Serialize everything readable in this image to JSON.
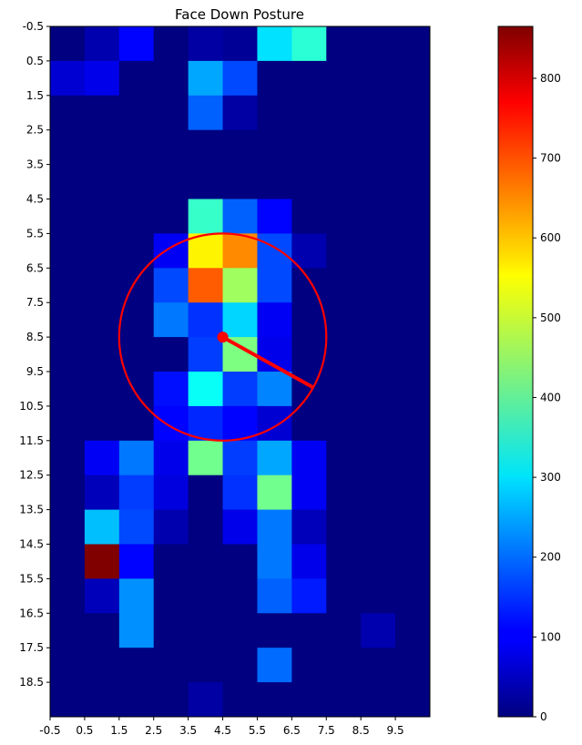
{
  "chart_data": [
    {
      "type": "heatmap",
      "title": "Face Down Posture",
      "xlabel": "",
      "ylabel": "",
      "x_tick_labels": [
        "-0.5",
        "0.5",
        "1.5",
        "2.5",
        "3.5",
        "4.5",
        "5.5",
        "6.5",
        "7.5",
        "8.5",
        "9.5"
      ],
      "y_tick_labels": [
        "-0.5",
        "0.5",
        "1.5",
        "2.5",
        "3.5",
        "4.5",
        "5.5",
        "6.5",
        "7.5",
        "8.5",
        "9.5",
        "10.5",
        "11.5",
        "12.5",
        "13.5",
        "14.5",
        "15.5",
        "16.5",
        "17.5",
        "18.5"
      ],
      "xlim": [
        -0.5,
        10.5
      ],
      "ylim": [
        19.5,
        -0.5
      ],
      "colormap": "jet",
      "vmin": 0,
      "vmax": 865,
      "colorbar_ticks": [
        0,
        100,
        200,
        300,
        400,
        500,
        600,
        700,
        800
      ],
      "values": [
        [
          0,
          40,
          110,
          0,
          30,
          20,
          300,
          360,
          0,
          0,
          0
        ],
        [
          70,
          90,
          0,
          0,
          250,
          170,
          0,
          0,
          0,
          0,
          0
        ],
        [
          0,
          0,
          0,
          0,
          190,
          30,
          0,
          0,
          0,
          0,
          0
        ],
        [
          0,
          0,
          0,
          0,
          0,
          0,
          0,
          0,
          0,
          0,
          0
        ],
        [
          0,
          0,
          0,
          0,
          0,
          0,
          0,
          0,
          0,
          0,
          0
        ],
        [
          0,
          0,
          0,
          0,
          370,
          190,
          110,
          0,
          0,
          0,
          0
        ],
        [
          0,
          0,
          0,
          100,
          550,
          640,
          170,
          40,
          0,
          0,
          0
        ],
        [
          0,
          0,
          0,
          170,
          680,
          460,
          170,
          0,
          0,
          0,
          0
        ],
        [
          0,
          0,
          0,
          210,
          150,
          290,
          100,
          0,
          0,
          0,
          0
        ],
        [
          0,
          0,
          0,
          0,
          160,
          430,
          90,
          0,
          0,
          0,
          0
        ],
        [
          0,
          0,
          0,
          120,
          330,
          160,
          220,
          0,
          0,
          0,
          0
        ],
        [
          0,
          0,
          0,
          110,
          140,
          110,
          70,
          0,
          0,
          0,
          0
        ],
        [
          0,
          100,
          210,
          90,
          420,
          160,
          250,
          100,
          0,
          0,
          0
        ],
        [
          0,
          50,
          160,
          80,
          0,
          150,
          420,
          100,
          0,
          0,
          0
        ],
        [
          0,
          270,
          170,
          40,
          0,
          90,
          210,
          50,
          0,
          0,
          0
        ],
        [
          0,
          865,
          110,
          0,
          0,
          0,
          210,
          90,
          0,
          0,
          0
        ],
        [
          0,
          50,
          230,
          0,
          0,
          0,
          190,
          130,
          0,
          0,
          0
        ],
        [
          0,
          0,
          230,
          0,
          0,
          0,
          0,
          0,
          0,
          40,
          0
        ],
        [
          0,
          0,
          0,
          0,
          0,
          0,
          200,
          0,
          0,
          0,
          0
        ],
        [
          0,
          0,
          0,
          0,
          30,
          0,
          0,
          0,
          0,
          0,
          0
        ]
      ],
      "overlay": {
        "circle": {
          "cx": 4.5,
          "cy": 8.5,
          "r": 3.0,
          "color": "#ff0000"
        },
        "center_point": {
          "x": 4.5,
          "y": 8.5,
          "color": "#ff0000"
        },
        "direction_line": {
          "x1": 4.5,
          "y1": 8.5,
          "x2": 7.1,
          "y2": 9.95,
          "color": "#ff0000"
        }
      },
      "grid": false,
      "legend": "none"
    }
  ]
}
